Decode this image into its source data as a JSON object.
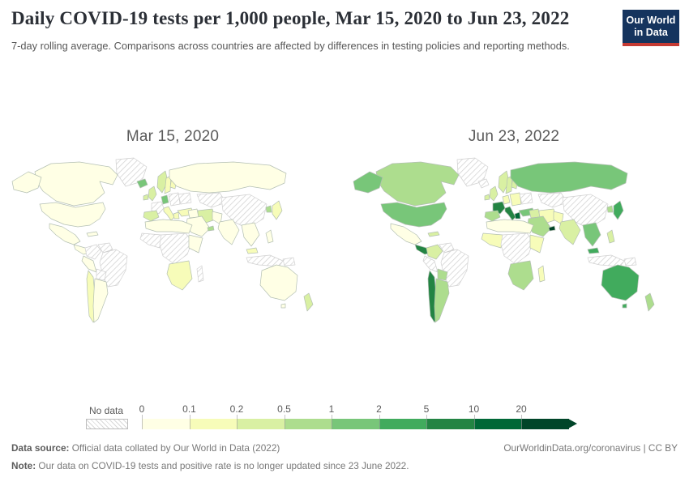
{
  "header": {
    "title": "Daily COVID-19 tests per 1,000 people, Mar 15, 2020 to Jun 23, 2022",
    "subtitle": "7-day rolling average. Comparisons across countries are affected by differences in testing policies and reporting methods.",
    "logo": {
      "line1": "Our World",
      "line2": "in Data",
      "bg_color": "#15345e",
      "accent_color": "#c53a33"
    }
  },
  "chart_data": {
    "type": "heatmap",
    "subtype": "choropleth world map, two dated panels",
    "title": "Daily COVID-19 tests per 1,000 people, Mar 15, 2020 to Jun 23, 2022",
    "unit": "daily tests per 1,000 people (7-day rolling average)",
    "legend": {
      "no_data_label": "No data",
      "no_data_pattern": "diagonal-hatch",
      "tick_labels": [
        "0",
        "0.1",
        "0.2",
        "0.5",
        "1",
        "2",
        "5",
        "10",
        "20"
      ],
      "bin_colors": [
        "#ffffe5",
        "#f7fcb9",
        "#d9f0a3",
        "#addd8e",
        "#78c679",
        "#41ab5d",
        "#238443",
        "#006837",
        "#004529"
      ],
      "open_ended_arrow": true
    },
    "panels": [
      {
        "date_label": "Mar 15, 2020",
        "fills": {
          "greenland": "x",
          "canada": 0,
          "alaska": 0,
          "usa": 0,
          "mexico": 0,
          "centralamerica": 0,
          "caribbean": 0,
          "colombia": "x",
          "venezuela": "x",
          "brazil": "x",
          "peru": 0,
          "bolivia": "x",
          "chile": 1,
          "argentina": 0,
          "iceland": 4,
          "ireland": 2,
          "uk": 2,
          "norway": 2,
          "sweden": 1,
          "finland": 1,
          "france": "x",
          "spain": 2,
          "germany": 4,
          "eeurope": "x",
          "ukraine": "x",
          "italy": 1,
          "greece": 1,
          "turkey": 1,
          "russia": 0,
          "kazakhstan": "x",
          "china": "x",
          "iran": 2,
          "iraq": 0,
          "saudi": 0,
          "uae": 3,
          "pakistan": 0,
          "india": 0,
          "seasia": 0,
          "malaysia": 1,
          "indonesia": "x",
          "philippines": 0,
          "japan": 1,
          "korea": 3,
          "nafrica": 0,
          "wafrica": "x",
          "cafrica": "x",
          "eafrica": 0,
          "safrica": 1,
          "madagascar": "x",
          "australia": 0,
          "tasmania": 0,
          "newzealand": 2,
          "png": "x"
        }
      },
      {
        "date_label": "Jun 23, 2022",
        "fills": {
          "greenland": "x",
          "canada": 3,
          "alaska": 4,
          "usa": 4,
          "mexico": 0,
          "centralamerica": 6,
          "caribbean": 2,
          "colombia": 2,
          "venezuela": "x",
          "brazil": "x",
          "peru": "x",
          "bolivia": 3,
          "chile": 6,
          "argentina": 3,
          "iceland": "x",
          "ireland": 2,
          "uk": 2,
          "norway": 2,
          "sweden": 2,
          "finland": 2,
          "france": 6,
          "spain": 3,
          "germany": 1,
          "eeurope": 1,
          "ukraine": "x",
          "italy": 6,
          "greece": 7,
          "turkey": 4,
          "russia": 4,
          "kazakhstan": "x",
          "china": "x",
          "iran": 1,
          "iraq": 2,
          "saudi": 3,
          "uae": 8,
          "pakistan": 1,
          "india": 2,
          "seasia": 4,
          "malaysia": 5,
          "indonesia": "x",
          "philippines": 2,
          "japan": 5,
          "korea": 3,
          "nafrica": 0,
          "wafrica": 1,
          "cafrica": "x",
          "eafrica": 1,
          "safrica": 3,
          "madagascar": 1,
          "australia": 5,
          "tasmania": 5,
          "newzealand": 3,
          "png": "x"
        }
      }
    ]
  },
  "footer": {
    "source_label": "Data source:",
    "source_text": " Official data collated by Our World in Data (2022)",
    "link_text": "OurWorldinData.org/coronavirus | CC BY",
    "note_label": "Note:",
    "note_text": " Our data on COVID-19 tests and positive rate is no longer updated since 23 June 2022."
  }
}
